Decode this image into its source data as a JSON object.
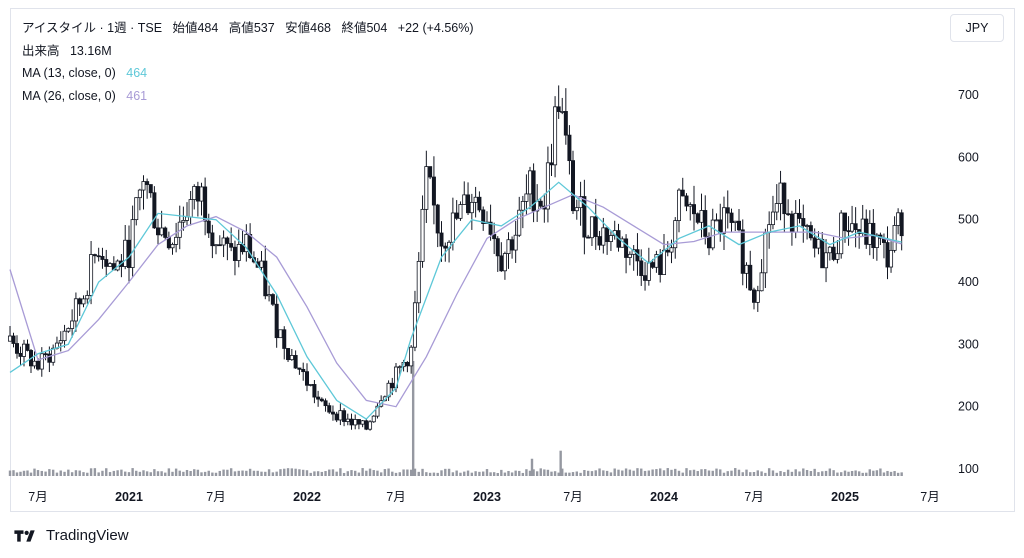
{
  "header": {
    "symbol": "アイスタイル",
    "interval": "1週",
    "exchange": "TSE",
    "open_label": "始値",
    "open": "484",
    "high_label": "高値",
    "high": "537",
    "low_label": "安値",
    "low": "468",
    "close_label": "終値",
    "close": "504",
    "change": "+22 (+4.56%)"
  },
  "volume_legend": {
    "label": "出来高",
    "value": "13.16M"
  },
  "ma13": {
    "label": "MA (13, close, 0)",
    "value": "464",
    "color": "#5ec8d8"
  },
  "ma26": {
    "label": "MA (26, close, 0)",
    "value": "461",
    "color": "#a89bd6"
  },
  "currency": "JPY",
  "brand": "TradingView",
  "chart_data": {
    "type": "candlestick",
    "y_ticks": [
      100,
      200,
      300,
      400,
      500,
      600,
      700
    ],
    "ylim": [
      85,
      775
    ],
    "x_ticks": [
      {
        "label": "7月",
        "date": "2020-07"
      },
      {
        "label": "2021",
        "date": "2021-01",
        "year": true
      },
      {
        "label": "7月",
        "date": "2021-07"
      },
      {
        "label": "2022",
        "date": "2022-01",
        "year": true
      },
      {
        "label": "7月",
        "date": "2022-07"
      },
      {
        "label": "2023",
        "date": "2023-01",
        "year": true
      },
      {
        "label": "7月",
        "date": "2023-07"
      },
      {
        "label": "2024",
        "date": "2024-01",
        "year": true
      },
      {
        "label": "7月",
        "date": "2024-07"
      },
      {
        "label": "2025",
        "date": "2025-01",
        "year": true
      },
      {
        "label": "7月",
        "date": "2025-07"
      }
    ],
    "date_range": [
      "2020-05",
      "2025-05"
    ],
    "close_series": [
      {
        "date": "2020-05",
        "close": 305
      },
      {
        "date": "2020-06",
        "close": 285
      },
      {
        "date": "2020-07",
        "close": 265
      },
      {
        "date": "2020-08",
        "close": 290
      },
      {
        "date": "2020-09",
        "close": 330
      },
      {
        "date": "2020-10",
        "close": 380
      },
      {
        "date": "2020-11",
        "close": 460
      },
      {
        "date": "2020-12",
        "close": 420
      },
      {
        "date": "2021-01",
        "close": 450
      },
      {
        "date": "2021-02",
        "close": 570
      },
      {
        "date": "2021-03",
        "close": 490
      },
      {
        "date": "2021-04",
        "close": 470
      },
      {
        "date": "2021-05",
        "close": 520
      },
      {
        "date": "2021-06",
        "close": 540
      },
      {
        "date": "2021-07",
        "close": 470
      },
      {
        "date": "2021-08",
        "close": 440
      },
      {
        "date": "2021-09",
        "close": 460
      },
      {
        "date": "2021-10",
        "close": 410
      },
      {
        "date": "2021-11",
        "close": 330
      },
      {
        "date": "2021-12",
        "close": 280
      },
      {
        "date": "2022-01",
        "close": 240
      },
      {
        "date": "2022-02",
        "close": 200
      },
      {
        "date": "2022-03",
        "close": 190
      },
      {
        "date": "2022-04",
        "close": 175
      },
      {
        "date": "2022-05",
        "close": 165
      },
      {
        "date": "2022-06",
        "close": 220
      },
      {
        "date": "2022-07",
        "close": 250
      },
      {
        "date": "2022-08",
        "close": 290
      },
      {
        "date": "2022-09",
        "close": 560
      },
      {
        "date": "2022-10",
        "close": 470
      },
      {
        "date": "2022-11",
        "close": 500
      },
      {
        "date": "2022-12",
        "close": 540
      },
      {
        "date": "2023-01",
        "close": 510
      },
      {
        "date": "2023-02",
        "close": 440
      },
      {
        "date": "2023-03",
        "close": 480
      },
      {
        "date": "2023-04",
        "close": 550
      },
      {
        "date": "2023-05",
        "close": 530
      },
      {
        "date": "2023-06",
        "close": 700
      },
      {
        "date": "2023-07",
        "close": 530
      },
      {
        "date": "2023-08",
        "close": 490
      },
      {
        "date": "2023-09",
        "close": 480
      },
      {
        "date": "2023-10",
        "close": 470
      },
      {
        "date": "2023-11",
        "close": 440
      },
      {
        "date": "2023-12",
        "close": 420
      },
      {
        "date": "2024-01",
        "close": 430
      },
      {
        "date": "2024-02",
        "close": 520
      },
      {
        "date": "2024-03",
        "close": 510
      },
      {
        "date": "2024-04",
        "close": 470
      },
      {
        "date": "2024-05",
        "close": 500
      },
      {
        "date": "2024-06",
        "close": 460
      },
      {
        "date": "2024-07",
        "close": 380
      },
      {
        "date": "2024-08",
        "close": 500
      },
      {
        "date": "2024-09",
        "close": 540
      },
      {
        "date": "2024-10",
        "close": 480
      },
      {
        "date": "2024-11",
        "close": 450
      },
      {
        "date": "2024-12",
        "close": 440
      },
      {
        "date": "2025-01",
        "close": 500
      },
      {
        "date": "2025-02",
        "close": 480
      },
      {
        "date": "2025-03",
        "close": 470
      },
      {
        "date": "2025-04",
        "close": 440
      },
      {
        "date": "2025-05",
        "close": 504
      }
    ],
    "ma13_series": [
      {
        "date": "2020-05",
        "value": 255
      },
      {
        "date": "2020-07",
        "value": 285
      },
      {
        "date": "2020-09",
        "value": 300
      },
      {
        "date": "2020-11",
        "value": 400
      },
      {
        "date": "2021-01",
        "value": 440
      },
      {
        "date": "2021-03",
        "value": 510
      },
      {
        "date": "2021-05",
        "value": 505
      },
      {
        "date": "2021-07",
        "value": 500
      },
      {
        "date": "2021-09",
        "value": 455
      },
      {
        "date": "2021-11",
        "value": 380
      },
      {
        "date": "2022-01",
        "value": 280
      },
      {
        "date": "2022-03",
        "value": 210
      },
      {
        "date": "2022-05",
        "value": 180
      },
      {
        "date": "2022-07",
        "value": 230
      },
      {
        "date": "2022-08",
        "value": 310
      },
      {
        "date": "2022-10",
        "value": 440
      },
      {
        "date": "2022-12",
        "value": 500
      },
      {
        "date": "2023-02",
        "value": 490
      },
      {
        "date": "2023-04",
        "value": 520
      },
      {
        "date": "2023-06",
        "value": 560
      },
      {
        "date": "2023-08",
        "value": 520
      },
      {
        "date": "2023-10",
        "value": 470
      },
      {
        "date": "2023-12",
        "value": 430
      },
      {
        "date": "2024-02",
        "value": 470
      },
      {
        "date": "2024-04",
        "value": 490
      },
      {
        "date": "2024-06",
        "value": 460
      },
      {
        "date": "2024-08",
        "value": 480
      },
      {
        "date": "2024-10",
        "value": 490
      },
      {
        "date": "2024-12",
        "value": 460
      },
      {
        "date": "2025-02",
        "value": 480
      },
      {
        "date": "2025-05",
        "value": 464
      }
    ],
    "ma26_series": [
      {
        "date": "2020-05",
        "value": 420
      },
      {
        "date": "2020-07",
        "value": 275
      },
      {
        "date": "2020-09",
        "value": 290
      },
      {
        "date": "2020-11",
        "value": 340
      },
      {
        "date": "2021-01",
        "value": 400
      },
      {
        "date": "2021-03",
        "value": 460
      },
      {
        "date": "2021-05",
        "value": 490
      },
      {
        "date": "2021-07",
        "value": 505
      },
      {
        "date": "2021-09",
        "value": 480
      },
      {
        "date": "2021-11",
        "value": 440
      },
      {
        "date": "2022-01",
        "value": 360
      },
      {
        "date": "2022-03",
        "value": 270
      },
      {
        "date": "2022-05",
        "value": 210
      },
      {
        "date": "2022-07",
        "value": 200
      },
      {
        "date": "2022-09",
        "value": 280
      },
      {
        "date": "2022-11",
        "value": 380
      },
      {
        "date": "2023-01",
        "value": 470
      },
      {
        "date": "2023-03",
        "value": 500
      },
      {
        "date": "2023-05",
        "value": 520
      },
      {
        "date": "2023-07",
        "value": 540
      },
      {
        "date": "2023-09",
        "value": 520
      },
      {
        "date": "2023-11",
        "value": 490
      },
      {
        "date": "2024-01",
        "value": 460
      },
      {
        "date": "2024-03",
        "value": 465
      },
      {
        "date": "2024-05",
        "value": 480
      },
      {
        "date": "2024-07",
        "value": 480
      },
      {
        "date": "2024-09",
        "value": 480
      },
      {
        "date": "2024-11",
        "value": 480
      },
      {
        "date": "2025-01",
        "value": 470
      },
      {
        "date": "2025-03",
        "value": 475
      },
      {
        "date": "2025-05",
        "value": 461
      }
    ],
    "volume_spikes": [
      {
        "date": "2022-08",
        "relative": 1.0
      },
      {
        "date": "2023-06",
        "relative": 0.22
      },
      {
        "date": "2023-04",
        "relative": 0.15
      }
    ]
  }
}
